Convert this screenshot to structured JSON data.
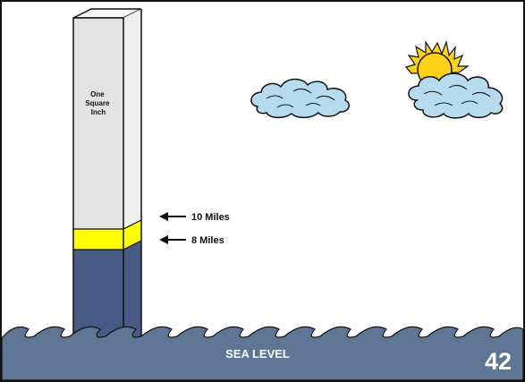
{
  "column": {
    "label_lines": [
      "One",
      "Square",
      "Inch"
    ],
    "colors": {
      "front_face": "#e3e3e3",
      "side_face": "#efefef",
      "yellow_band": "#ffff00",
      "lower_band": "#475a85",
      "outline": "#111111"
    }
  },
  "markers": [
    {
      "label": "10 Miles",
      "icon": "left-arrow-icon"
    },
    {
      "label": "8 Miles",
      "icon": "left-arrow-icon"
    }
  ],
  "sky": {
    "clouds": [
      "cloud-left",
      "cloud-right"
    ],
    "cloud_color": "#b6dbee",
    "sun_color": "#ffd21a",
    "sun_icon": "sun-icon"
  },
  "sea": {
    "label": "SEA LEVEL",
    "color": "#5e7594",
    "text_color": "#ffffff"
  },
  "slide_number": "42"
}
